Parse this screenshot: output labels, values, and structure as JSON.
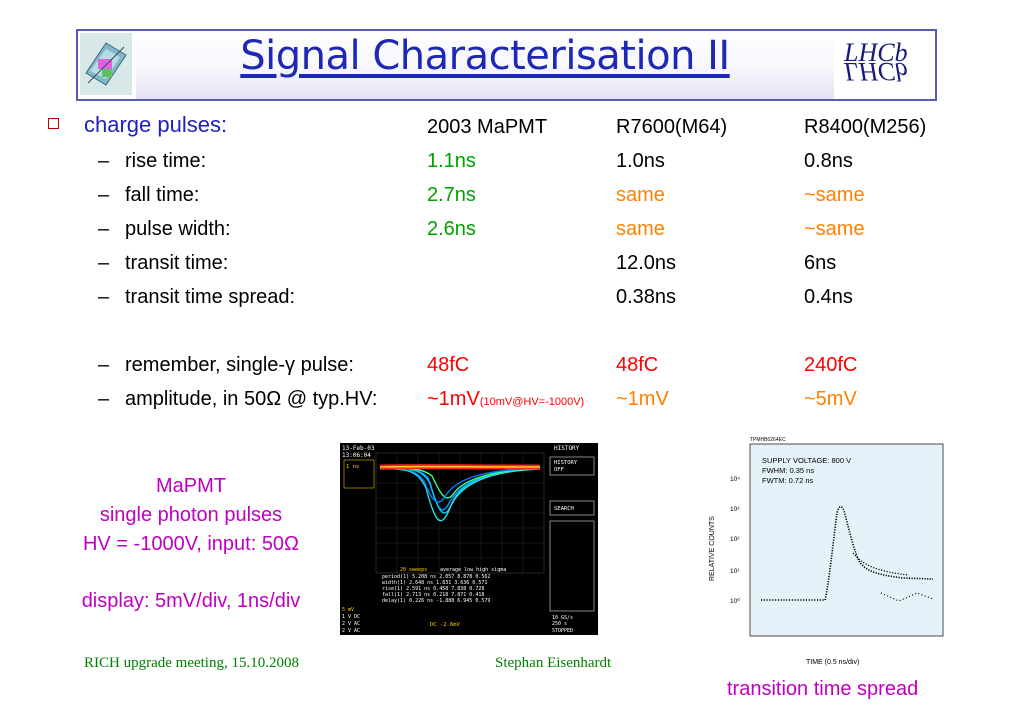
{
  "title": "Signal Characterisation II",
  "table": {
    "heading": "charge pulses:",
    "columns": [
      "2003 MaPMT",
      "R7600(M64)",
      "R8400(M256)"
    ],
    "rows": [
      {
        "label": "rise time:",
        "v1": "1.1ns",
        "v2": "1.0ns",
        "v3": "0.8ns"
      },
      {
        "label": "fall time:",
        "v1": "2.7ns",
        "v2": "same",
        "v3": "~same"
      },
      {
        "label": "pulse width:",
        "v1": "2.6ns",
        "v2": "same",
        "v3": "~same"
      },
      {
        "label": "transit time:",
        "v1": "",
        "v2": "12.0ns",
        "v3": "6ns"
      },
      {
        "label": "transit time spread:",
        "v1": "",
        "v2": "0.38ns",
        "v3": "0.4ns"
      },
      {
        "label": "remember, single-γ pulse:",
        "v1": "48fC",
        "v2": "48fC",
        "v3": "240fC"
      },
      {
        "label": "amplitude, in 50Ω @ typ.HV:",
        "v1": "~1mV",
        "v1_note": "(10mV@HV=-1000V)",
        "v2": "~1mV",
        "v3": "~5mV"
      }
    ]
  },
  "mapmt_note": {
    "line1": "MaPMT",
    "line2": "single photon pulses",
    "line3": "HV = -1000V, input: 50Ω",
    "line4": "display: 5mV/div, 1ns/div"
  },
  "footer": {
    "left": "RICH upgrade meeting, 15.10.2008",
    "center": "Stephan Eisenhardt"
  },
  "plot_caption": "transition time spread",
  "plot": {
    "id_label": "TPMHB0264EC",
    "info1": "SUPPLY VOLTAGE: 800 V",
    "info2": "FWHM: 0.35 ns",
    "info3": "FWTM: 0.72 ns",
    "ylabel": "RELATIVE COUNTS",
    "xlabel": "TIME (0.5 ns/div)",
    "y_ticks": [
      "10⁴",
      "10³",
      "10²",
      "10¹",
      "10⁰"
    ]
  },
  "scope": {
    "date": "13-Feb-03",
    "time": "13:06:04",
    "history": "HISTORY",
    "history_btn1": "HISTORY",
    "history_btn2": "OFF",
    "search": "SEARCH",
    "sweeps": "20 sweeps",
    "stats_header": "average   low    high   sigma",
    "stats": [
      "period(1)   5.208 ns  2.057  8.878  0.562",
      "width(1)    2.648 ns  1.831  3.636  0.571",
      "rise(1)     2.591 ns  0.458  7.838  0.728",
      "fall(1)     2.713 ns  0.218  7.871  0.418",
      "delay(1)    0.226 ns -1.888  6.945  0.579"
    ],
    "readout": "DC -2.6mV",
    "rate1": "10 GS/s",
    "rate2": "250 s",
    "stopped": "STOPPED",
    "ch_label": "1 ns",
    "ch1": "5 mV",
    "ch2": "1 V  DC",
    "ch3": "2 V  AC",
    "ch4": "2 V  AC"
  }
}
